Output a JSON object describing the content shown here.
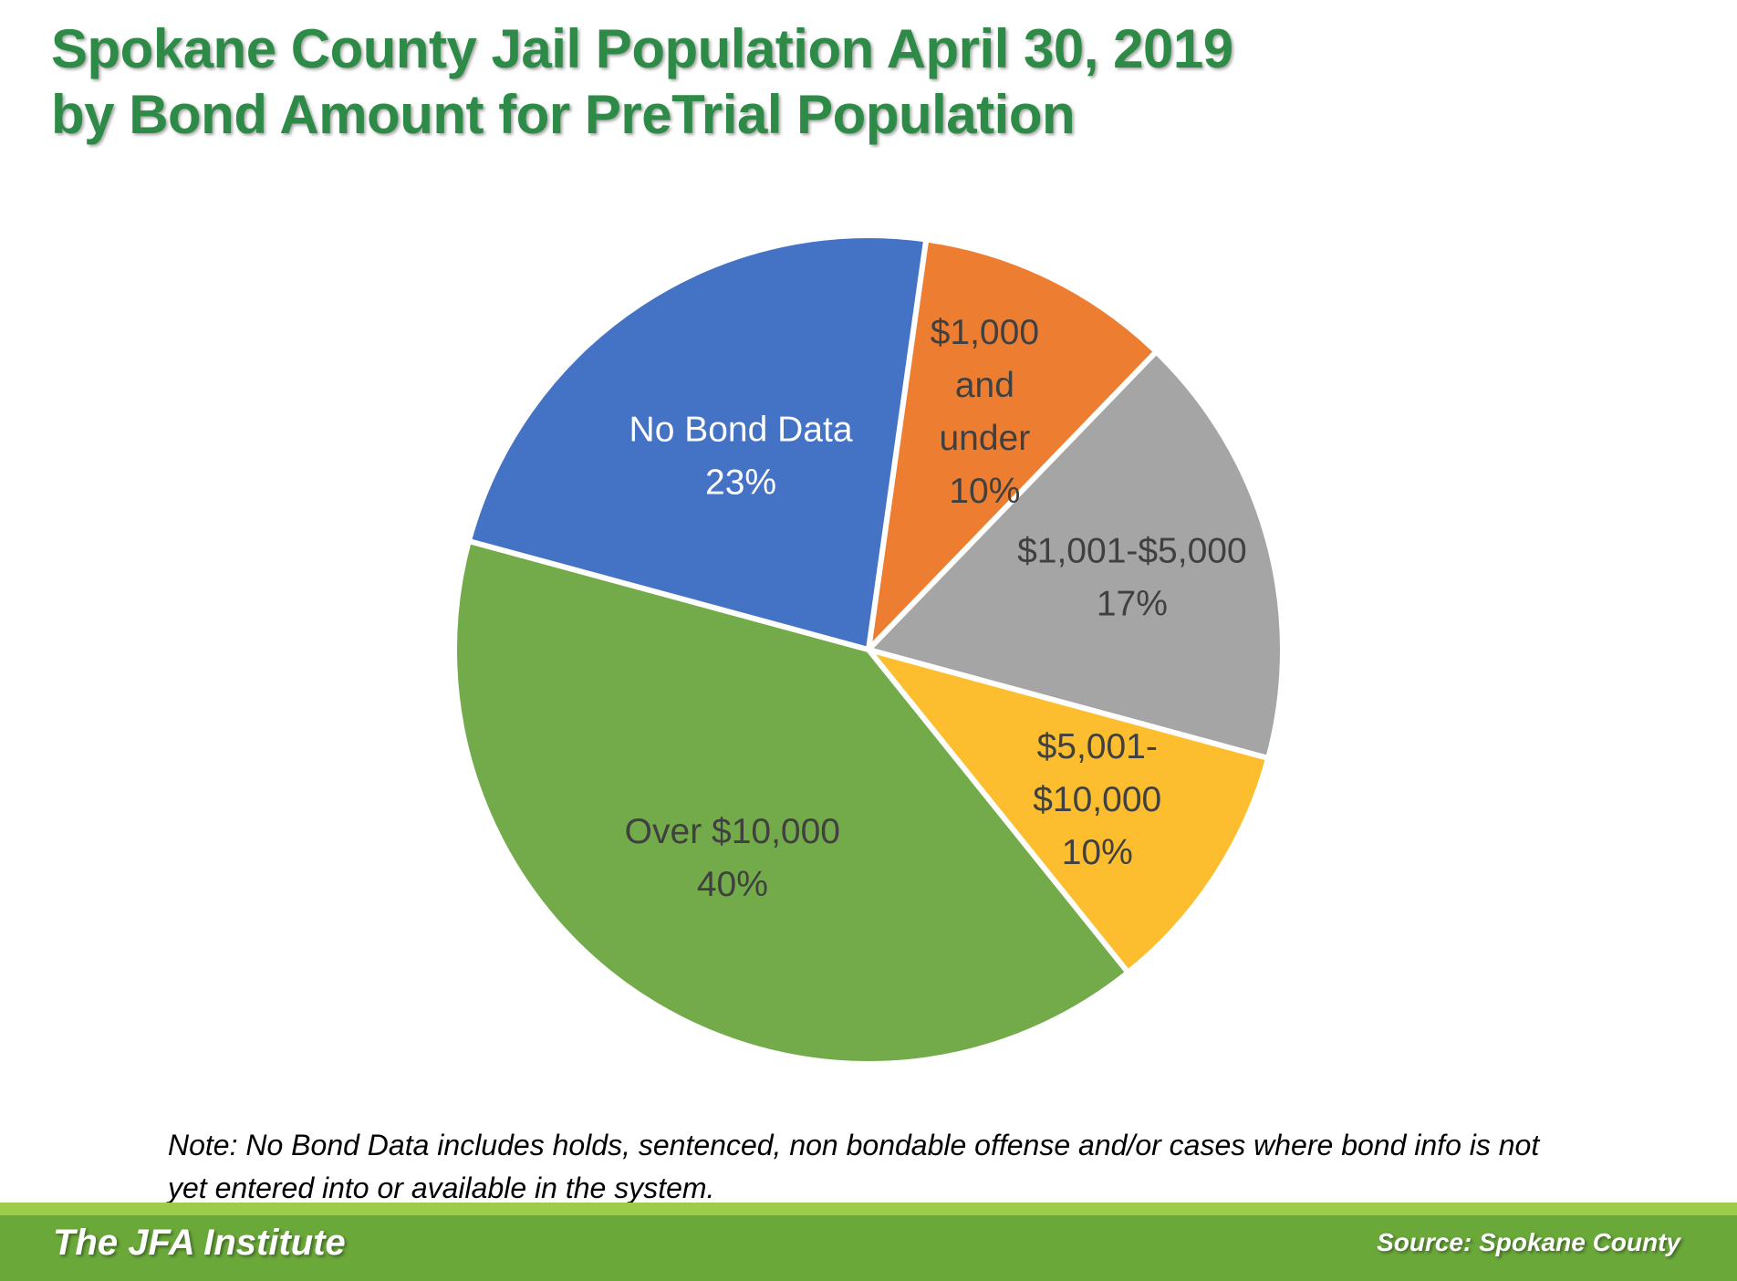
{
  "chart_data": {
    "type": "pie",
    "title_lines": [
      "Spokane County Jail Population April 30, 2019",
      "by Bond Amount for PreTrial Population"
    ],
    "slices": [
      {
        "label_lines": [
          "$1,000",
          "and",
          "under",
          "10%"
        ],
        "value": 10,
        "color": "#ed7d31",
        "text_color": "#404040"
      },
      {
        "label_lines": [
          "$1,001-$5,000",
          "17%"
        ],
        "value": 17,
        "color": "#a5a5a5",
        "text_color": "#404040"
      },
      {
        "label_lines": [
          "$5,001-",
          "$10,000",
          "10%"
        ],
        "value": 10,
        "color": "#fcbd2f",
        "text_color": "#404040"
      },
      {
        "label_lines": [
          "Over $10,000",
          "40%"
        ],
        "value": 40,
        "color": "#73ab4a",
        "text_color": "#404040"
      },
      {
        "label_lines": [
          "No Bond Data",
          "23%"
        ],
        "value": 23,
        "color": "#4472c4",
        "text_color": "#ffffff"
      }
    ]
  },
  "note": {
    "line1": "Note: No Bond Data includes holds, sentenced, non bondable offense and/or cases where bond info is not",
    "line2": "yet entered into or available in the system."
  },
  "footer": {
    "left": "The JFA Institute",
    "right": "Source: Spokane County"
  }
}
